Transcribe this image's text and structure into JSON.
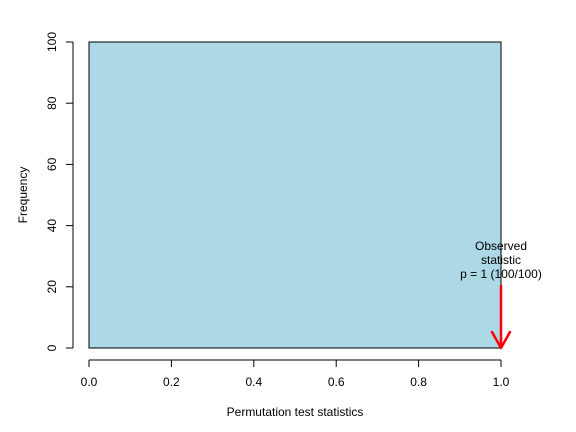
{
  "chart_data": {
    "type": "bar",
    "title": "",
    "xlabel": "Permutation test statistics",
    "ylabel": "Frequency",
    "xlim": [
      0,
      1
    ],
    "ylim": [
      0,
      100
    ],
    "x_ticks": [
      "0.0",
      "0.2",
      "0.4",
      "0.6",
      "0.8",
      "1.0"
    ],
    "y_ticks": [
      "0",
      "20",
      "40",
      "60",
      "80",
      "100"
    ],
    "bins": [
      {
        "x_start": 0,
        "x_end": 1,
        "count": 100
      }
    ],
    "bar_color": "#add8e6",
    "annotation": {
      "x": 1.0,
      "lines": [
        "Observed",
        "statistic",
        "p = 1 (100/100)"
      ],
      "arrow_color": "#ff0000"
    }
  }
}
